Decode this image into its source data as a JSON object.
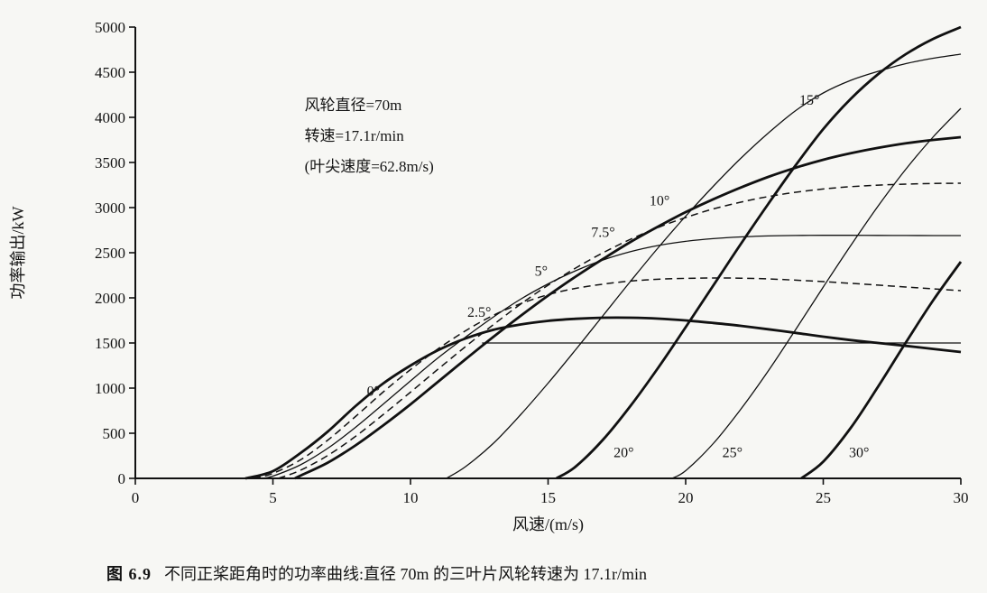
{
  "figure_caption": {
    "prefix": "图 6.9",
    "text": "不同正桨距角时的功率曲线:直径 70m 的三叶片风轮转速为 17.1r/min"
  },
  "chart_data": {
    "type": "line",
    "title": "",
    "xlabel": "风速/(m/s)",
    "ylabel": "功率输出/kW",
    "xlim": [
      0,
      30
    ],
    "ylim": [
      0,
      5000
    ],
    "xticks": [
      0,
      5,
      10,
      15,
      20,
      25,
      30
    ],
    "yticks": [
      0,
      500,
      1000,
      1500,
      2000,
      2500,
      3000,
      3500,
      4000,
      4500,
      5000
    ],
    "grid": false,
    "legend_position": "none",
    "line_color": "#111111",
    "annotation": {
      "lines": [
        "风轮直径=70m",
        "转速=17.1r/min",
        "(叶尖速度=62.8m/s)"
      ],
      "x": 6.15,
      "y": 4080
    },
    "rated_power_line": {
      "y": 1500,
      "x_start": 12.6,
      "x_end": 30
    },
    "series": [
      {
        "pitch_deg": 0,
        "style": "thick",
        "label": {
          "text": "0°",
          "x": 8.65,
          "y": 915
        },
        "points": [
          [
            4,
            0
          ],
          [
            5,
            80
          ],
          [
            6,
            280
          ],
          [
            7,
            520
          ],
          [
            8,
            800
          ],
          [
            9,
            1050
          ],
          [
            10,
            1250
          ],
          [
            11,
            1420
          ],
          [
            12,
            1550
          ],
          [
            13,
            1645
          ],
          [
            14,
            1705
          ],
          [
            15,
            1745
          ],
          [
            16,
            1768
          ],
          [
            17,
            1780
          ],
          [
            18,
            1780
          ],
          [
            19,
            1770
          ],
          [
            20,
            1750
          ],
          [
            21,
            1722
          ],
          [
            22,
            1690
          ],
          [
            23,
            1652
          ],
          [
            24,
            1612
          ],
          [
            25,
            1570
          ],
          [
            26,
            1532
          ],
          [
            27,
            1500
          ],
          [
            28,
            1468
          ],
          [
            29,
            1434
          ],
          [
            30,
            1400
          ]
        ]
      },
      {
        "pitch_deg": 2.5,
        "style": "dashed",
        "label": {
          "text": "2.5°",
          "x": 12.5,
          "y": 1790
        },
        "points": [
          [
            4.3,
            0
          ],
          [
            5,
            55
          ],
          [
            6,
            205
          ],
          [
            7,
            425
          ],
          [
            8,
            685
          ],
          [
            9,
            955
          ],
          [
            10,
            1205
          ],
          [
            11,
            1435
          ],
          [
            12,
            1635
          ],
          [
            13,
            1805
          ],
          [
            14,
            1935
          ],
          [
            15,
            2035
          ],
          [
            16,
            2105
          ],
          [
            17,
            2152
          ],
          [
            18,
            2186
          ],
          [
            19,
            2206
          ],
          [
            20,
            2216
          ],
          [
            21,
            2220
          ],
          [
            22,
            2218
          ],
          [
            23,
            2210
          ],
          [
            24,
            2196
          ],
          [
            25,
            2180
          ],
          [
            26,
            2161
          ],
          [
            27,
            2141
          ],
          [
            28,
            2120
          ],
          [
            29,
            2100
          ],
          [
            30,
            2080
          ]
        ]
      },
      {
        "pitch_deg": 5,
        "style": "thin",
        "label": {
          "text": "5°",
          "x": 14.75,
          "y": 2245
        },
        "points": [
          [
            4.6,
            0
          ],
          [
            5,
            25
          ],
          [
            6,
            150
          ],
          [
            7,
            335
          ],
          [
            8,
            565
          ],
          [
            9,
            820
          ],
          [
            10,
            1080
          ],
          [
            11,
            1335
          ],
          [
            12,
            1565
          ],
          [
            13,
            1785
          ],
          [
            14,
            1985
          ],
          [
            15,
            2155
          ],
          [
            16,
            2300
          ],
          [
            17,
            2420
          ],
          [
            18,
            2512
          ],
          [
            19,
            2580
          ],
          [
            20,
            2626
          ],
          [
            21,
            2656
          ],
          [
            22,
            2675
          ],
          [
            23,
            2686
          ],
          [
            24,
            2691
          ],
          [
            25,
            2693
          ],
          [
            26,
            2693
          ],
          [
            27,
            2692
          ],
          [
            28,
            2691
          ],
          [
            29,
            2690
          ],
          [
            30,
            2690
          ]
        ]
      },
      {
        "pitch_deg": 7.5,
        "style": "dashed",
        "label": {
          "text": "7.5°",
          "x": 17.0,
          "y": 2675
        },
        "points": [
          [
            5.2,
            0
          ],
          [
            6,
            90
          ],
          [
            7,
            255
          ],
          [
            8,
            465
          ],
          [
            9,
            705
          ],
          [
            10,
            955
          ],
          [
            11,
            1210
          ],
          [
            12,
            1460
          ],
          [
            13,
            1700
          ],
          [
            14,
            1930
          ],
          [
            15,
            2140
          ],
          [
            16,
            2330
          ],
          [
            17,
            2500
          ],
          [
            18,
            2650
          ],
          [
            19,
            2780
          ],
          [
            20,
            2890
          ],
          [
            21,
            2985
          ],
          [
            22,
            3060
          ],
          [
            23,
            3122
          ],
          [
            24,
            3170
          ],
          [
            25,
            3206
          ],
          [
            26,
            3232
          ],
          [
            27,
            3249
          ],
          [
            28,
            3260
          ],
          [
            29,
            3267
          ],
          [
            30,
            3270
          ]
        ]
      },
      {
        "pitch_deg": 10,
        "style": "thick",
        "label": {
          "text": "10°",
          "x": 19.05,
          "y": 3025
        },
        "points": [
          [
            5.8,
            0
          ],
          [
            6,
            30
          ],
          [
            7,
            175
          ],
          [
            8,
            365
          ],
          [
            9,
            585
          ],
          [
            10,
            820
          ],
          [
            11,
            1070
          ],
          [
            12,
            1320
          ],
          [
            13,
            1565
          ],
          [
            14,
            1800
          ],
          [
            15,
            2025
          ],
          [
            16,
            2235
          ],
          [
            17,
            2432
          ],
          [
            18,
            2620
          ],
          [
            19,
            2790
          ],
          [
            20,
            2950
          ],
          [
            21,
            3092
          ],
          [
            22,
            3222
          ],
          [
            23,
            3340
          ],
          [
            24,
            3442
          ],
          [
            25,
            3530
          ],
          [
            26,
            3602
          ],
          [
            27,
            3662
          ],
          [
            28,
            3712
          ],
          [
            29,
            3750
          ],
          [
            30,
            3780
          ]
        ]
      },
      {
        "pitch_deg": 15,
        "style": "thin",
        "label": {
          "text": "15°",
          "x": 24.5,
          "y": 4140
        },
        "points": [
          [
            11.3,
            0
          ],
          [
            12,
            130
          ],
          [
            13,
            385
          ],
          [
            14,
            705
          ],
          [
            15,
            1055
          ],
          [
            16,
            1425
          ],
          [
            17,
            1805
          ],
          [
            18,
            2185
          ],
          [
            19,
            2555
          ],
          [
            20,
            2905
          ],
          [
            21,
            3235
          ],
          [
            22,
            3545
          ],
          [
            23,
            3825
          ],
          [
            24,
            4075
          ],
          [
            25,
            4270
          ],
          [
            26,
            4410
          ],
          [
            27,
            4510
          ],
          [
            28,
            4595
          ],
          [
            29,
            4655
          ],
          [
            30,
            4700
          ]
        ]
      },
      {
        "pitch_deg": 20,
        "style": "thick",
        "label": {
          "text": "20°",
          "x": 17.75,
          "y": 235
        },
        "points": [
          [
            15.3,
            0
          ],
          [
            16,
            130
          ],
          [
            17,
            430
          ],
          [
            18,
            805
          ],
          [
            19,
            1225
          ],
          [
            20,
            1675
          ],
          [
            21,
            2135
          ],
          [
            22,
            2595
          ],
          [
            23,
            3040
          ],
          [
            24,
            3470
          ],
          [
            25,
            3870
          ],
          [
            26,
            4205
          ],
          [
            27,
            4480
          ],
          [
            28,
            4700
          ],
          [
            29,
            4870
          ],
          [
            30,
            5000
          ]
        ]
      },
      {
        "pitch_deg": 25,
        "style": "thin",
        "label": {
          "text": "25°",
          "x": 21.7,
          "y": 235
        },
        "points": [
          [
            19.5,
            0
          ],
          [
            20,
            85
          ],
          [
            21,
            385
          ],
          [
            22,
            765
          ],
          [
            23,
            1190
          ],
          [
            24,
            1650
          ],
          [
            25,
            2120
          ],
          [
            26,
            2580
          ],
          [
            27,
            3020
          ],
          [
            28,
            3425
          ],
          [
            29,
            3785
          ],
          [
            30,
            4100
          ]
        ]
      },
      {
        "pitch_deg": 30,
        "style": "thick",
        "label": {
          "text": "30°",
          "x": 26.3,
          "y": 235
        },
        "points": [
          [
            24.2,
            0
          ],
          [
            25,
            185
          ],
          [
            26,
            560
          ],
          [
            27,
            1020
          ],
          [
            28,
            1505
          ],
          [
            29,
            1975
          ],
          [
            30,
            2400
          ]
        ]
      }
    ]
  }
}
